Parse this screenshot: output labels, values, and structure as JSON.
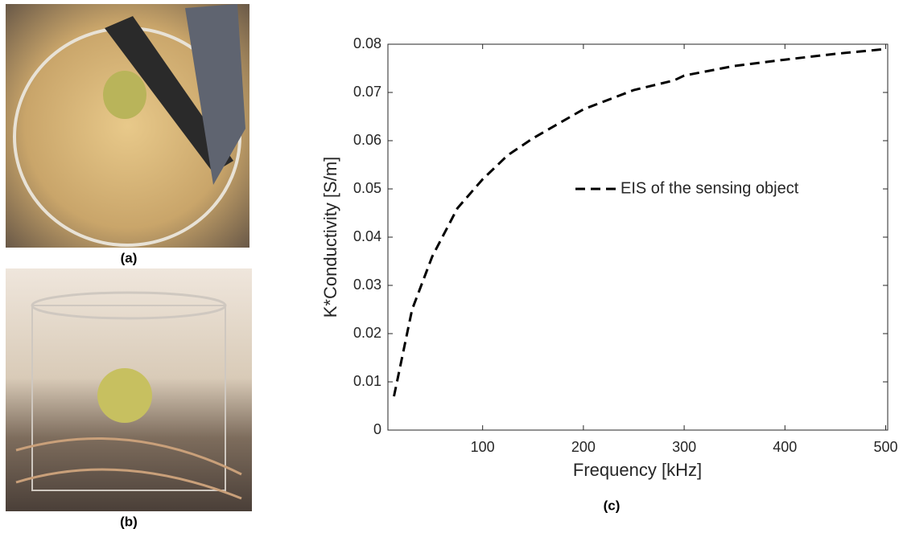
{
  "panels": {
    "a": "(a)",
    "b": "(b)",
    "c": "(c)"
  },
  "chart_data": {
    "type": "line",
    "xlabel": "Frequency [kHz]",
    "ylabel": "K*Conductivity [S/m]",
    "x": [
      12,
      20,
      30,
      50,
      75,
      100,
      125,
      150,
      200,
      250,
      290,
      300,
      350,
      400,
      450,
      500
    ],
    "series": [
      {
        "name": "EIS of the sensing object",
        "color": "#000000",
        "line_style": "dashed",
        "values": [
          0.007,
          0.015,
          0.025,
          0.036,
          0.046,
          0.052,
          0.057,
          0.0605,
          0.0665,
          0.0705,
          0.0725,
          0.0735,
          0.0755,
          0.0768,
          0.078,
          0.079
        ]
      }
    ],
    "xlim": [
      6,
      502
    ],
    "ylim": [
      0,
      0.08
    ],
    "xticks": [
      100,
      200,
      300,
      400,
      500
    ],
    "yticks": [
      0,
      0.01,
      0.02,
      0.03,
      0.04,
      0.05,
      0.06,
      0.07,
      0.08
    ],
    "grid": false,
    "legend": "right"
  }
}
